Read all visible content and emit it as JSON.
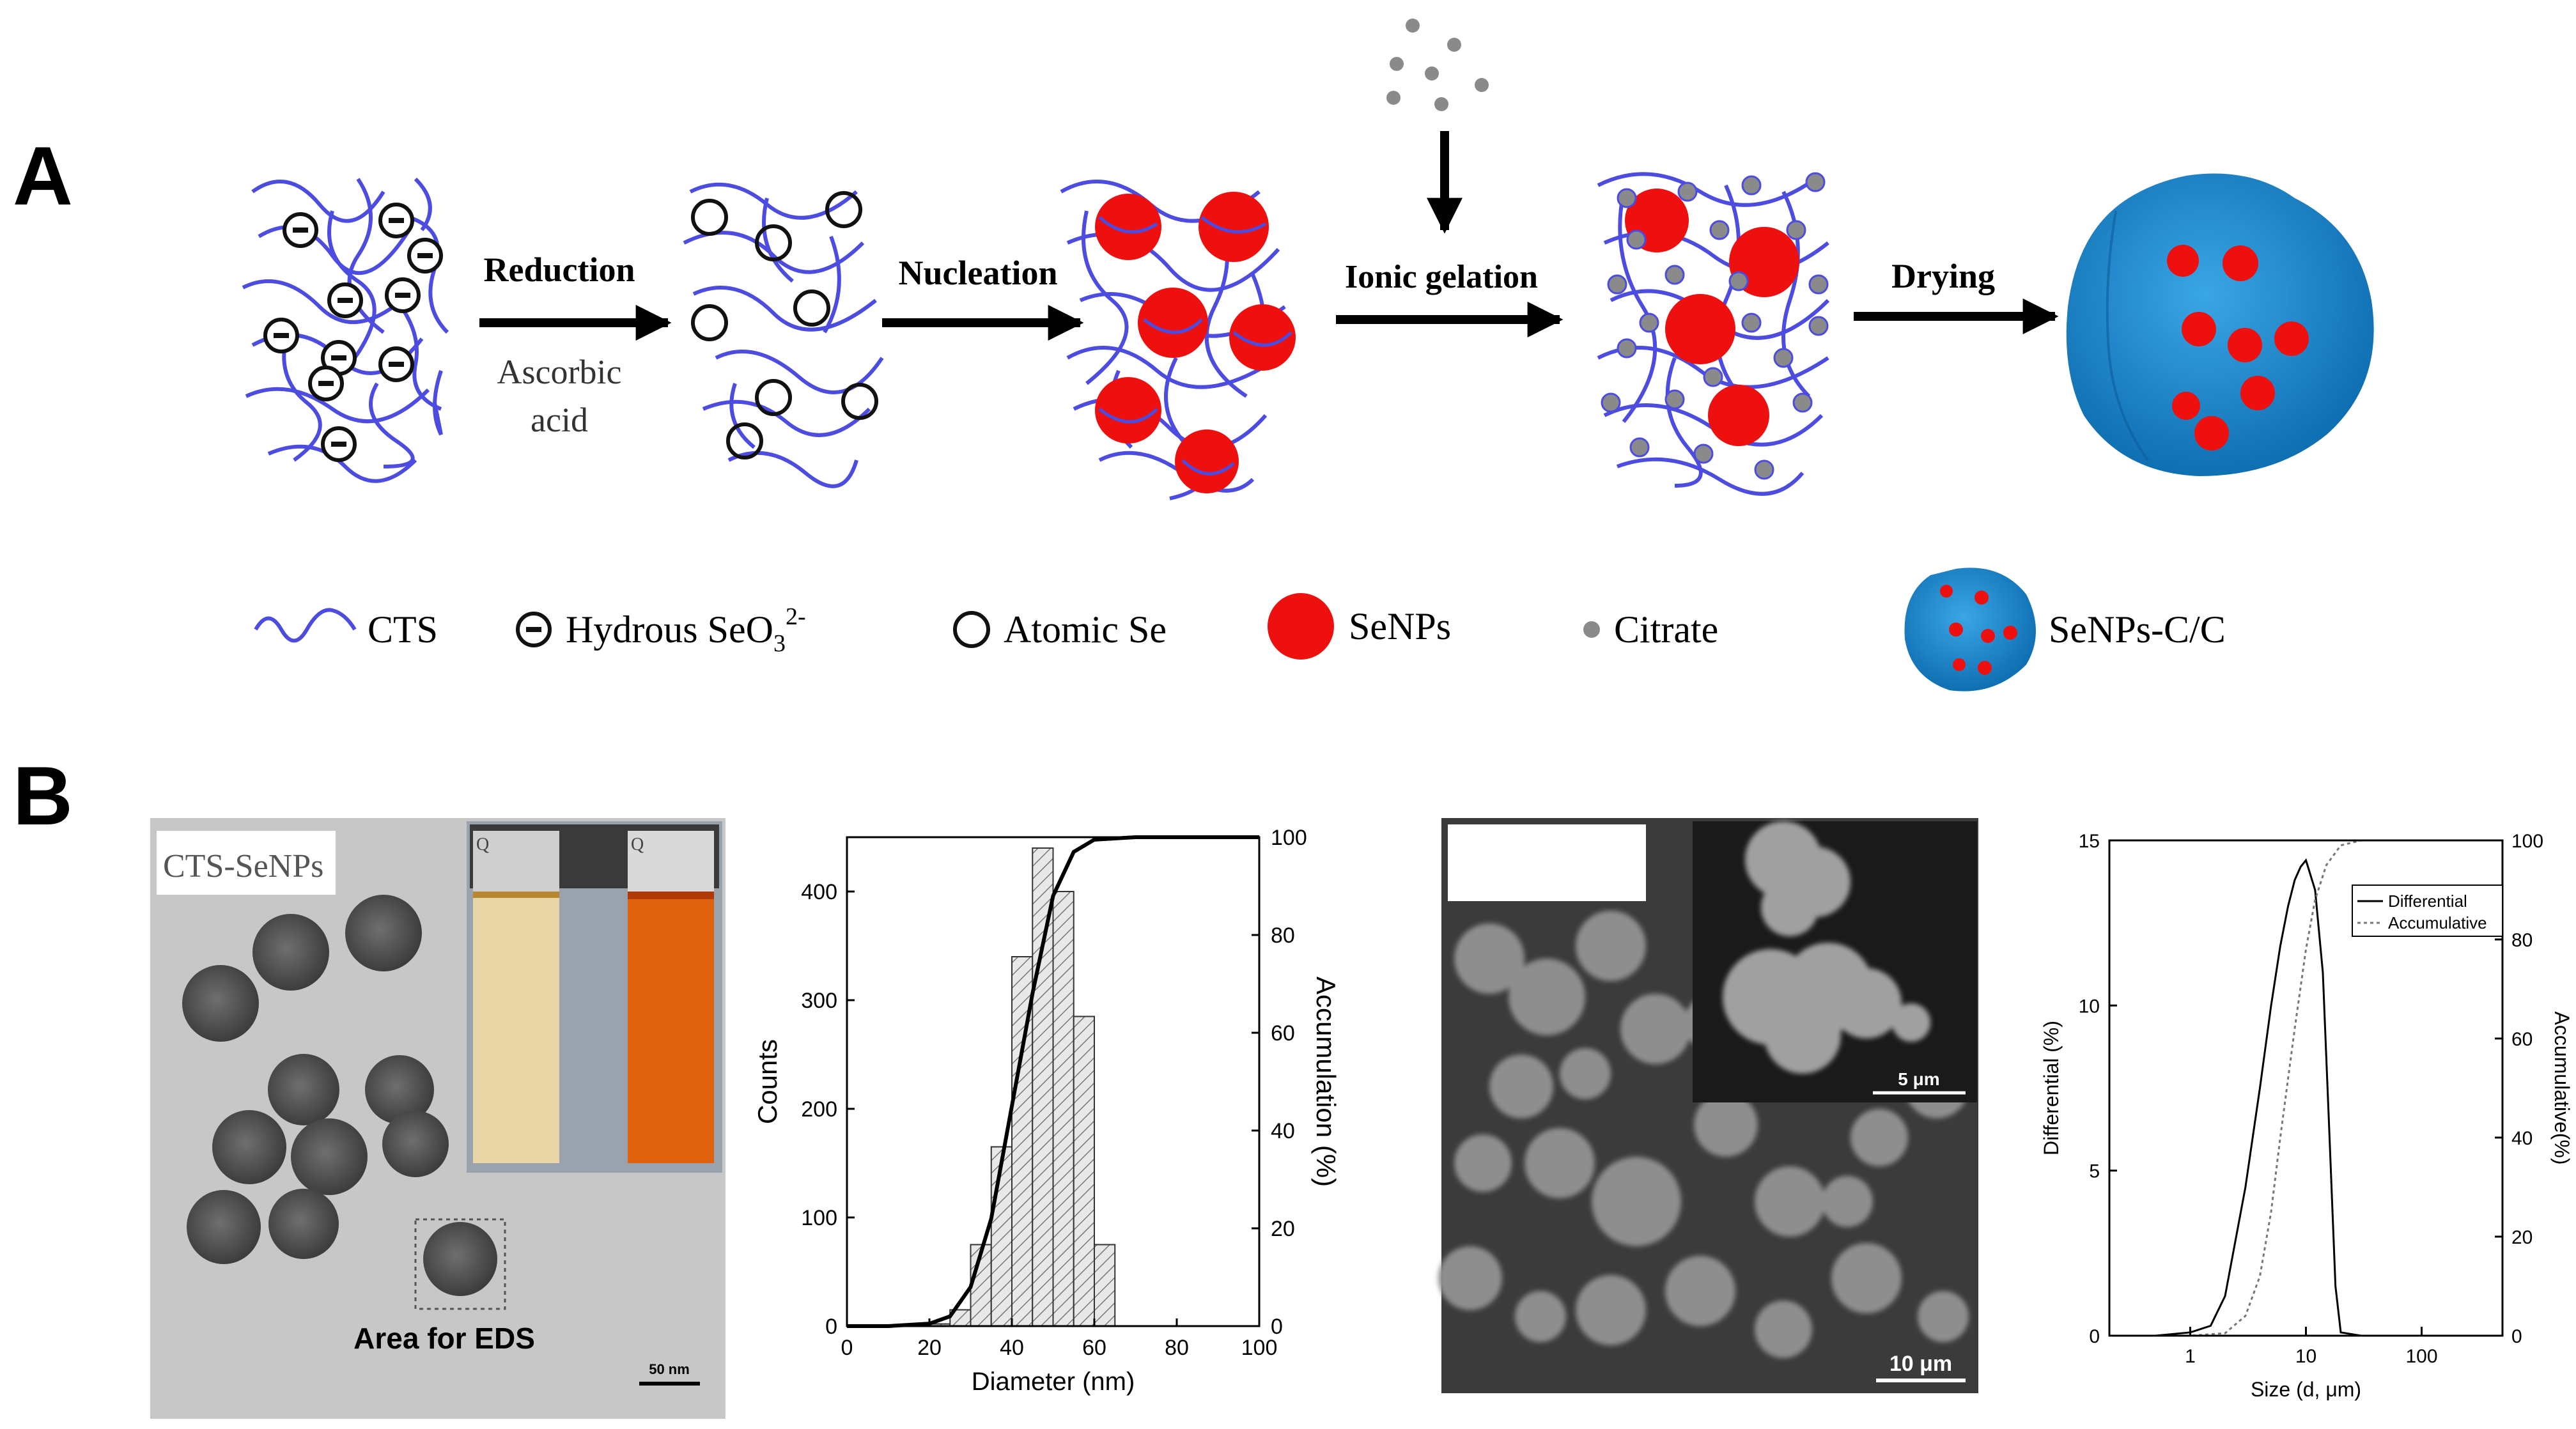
{
  "panel_labels": {
    "a": "A",
    "b": "B"
  },
  "scheme": {
    "steps": [
      {
        "label": "Reduction",
        "sublabel_line1": "Ascorbic",
        "sublabel_line2": "acid"
      },
      {
        "label": "Nucleation"
      },
      {
        "label": "Ionic gelation"
      },
      {
        "label": "Drying"
      }
    ],
    "legend": {
      "cts": "CTS",
      "hydrous": "Hydrous SeO",
      "hydrous_sub": "3",
      "hydrous_sup": "2-",
      "atomic": "Atomic Se",
      "senps": "SeNPs",
      "citrate": "Citrate",
      "senps_cc": "SeNPs-C/C"
    },
    "colors": {
      "chain": "#4c4ce0",
      "senp": "#ee0f0f",
      "citrate": "#8a8a8a",
      "particle": "#1a86cf"
    }
  },
  "tem": {
    "label": "CTS-SeNPs",
    "area_label": "Area for EDS",
    "scale_label": "50 nm",
    "vial_marks": [
      "Q",
      "Q"
    ]
  },
  "sem": {
    "scale_main": "10 μm",
    "scale_inset": "5 μm"
  },
  "chart_data": [
    {
      "type": "bar",
      "xlabel": "Diameter (nm)",
      "ylabel": "Counts",
      "y2label": "Accumulation (%)",
      "xlim": [
        0,
        100
      ],
      "ylim": [
        0,
        450
      ],
      "y2lim": [
        0,
        100
      ],
      "xticks": [
        0,
        20,
        40,
        60,
        80,
        100
      ],
      "yticks": [
        0,
        100,
        200,
        300,
        400
      ],
      "y2ticks": [
        0,
        20,
        40,
        60,
        80,
        100
      ],
      "bin_edges": [
        20,
        25,
        30,
        35,
        40,
        45,
        50,
        55,
        60,
        65
      ],
      "counts": [
        2,
        15,
        75,
        165,
        340,
        440,
        400,
        285,
        75,
        6
      ],
      "series": [
        {
          "name": "Accumulation",
          "x": [
            0,
            10,
            20,
            25,
            30,
            35,
            40,
            45,
            50,
            55,
            60,
            70,
            80,
            90,
            100
          ],
          "y": [
            0,
            0,
            0.5,
            2,
            8,
            22,
            45,
            68,
            88,
            97,
            99.5,
            100,
            100,
            100,
            100
          ]
        }
      ]
    },
    {
      "type": "line",
      "xlabel": "Size (d, μm)",
      "ylabel": "Differential (%)",
      "y2label": "Accumulative(%)",
      "xscale": "log",
      "xlim": [
        0.2,
        500
      ],
      "ylim": [
        0,
        15
      ],
      "y2lim": [
        0,
        100
      ],
      "xticks": [
        1,
        10,
        100
      ],
      "yticks": [
        0,
        5,
        10,
        15
      ],
      "y2ticks": [
        0,
        20,
        40,
        60,
        80,
        100
      ],
      "legend_position": "top-right",
      "series": [
        {
          "name": "Differential",
          "style": "solid",
          "axis": "left",
          "x": [
            0.2,
            0.5,
            1,
            1.5,
            2,
            3,
            4,
            5,
            6,
            7,
            8,
            9,
            10,
            12,
            14,
            16,
            18,
            20,
            30,
            100,
            500
          ],
          "y": [
            0,
            0,
            0.1,
            0.3,
            1.2,
            4.5,
            7.5,
            10,
            11.8,
            13,
            13.8,
            14.2,
            14.4,
            13.5,
            11,
            6,
            1.5,
            0.1,
            0,
            0,
            0
          ]
        },
        {
          "name": "Accumulative",
          "style": "dotted",
          "axis": "right",
          "x": [
            0.2,
            1,
            2,
            3,
            4,
            5,
            6,
            8,
            10,
            12,
            15,
            20,
            30,
            100,
            500
          ],
          "y": [
            0,
            0,
            0.5,
            4,
            12,
            25,
            40,
            62,
            78,
            88,
            95,
            99,
            100,
            100,
            100
          ]
        }
      ]
    }
  ]
}
